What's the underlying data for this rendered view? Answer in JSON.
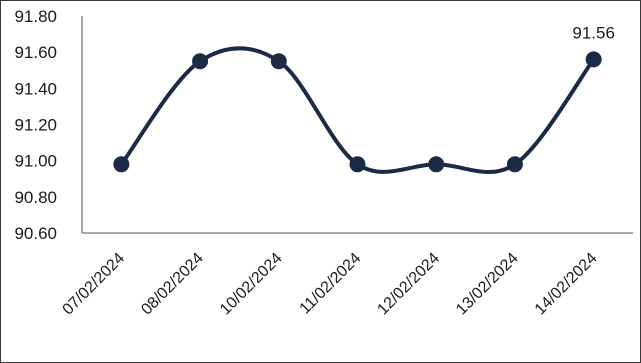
{
  "chart_data": {
    "type": "line",
    "categories": [
      "07/02/2024",
      "08/02/2024",
      "10/02/2024",
      "11/02/2024",
      "12/02/2024",
      "13/02/2024",
      "14/02/2024"
    ],
    "series": [
      {
        "values": [
          90.98,
          91.55,
          91.55,
          90.98,
          90.98,
          90.98,
          91.56
        ]
      }
    ],
    "ylim": [
      90.6,
      91.8
    ],
    "yticks": [
      "90.60",
      "90.80",
      "91.00",
      "91.20",
      "91.40",
      "91.60",
      "91.80"
    ],
    "data_labels": [
      {
        "index": 6,
        "text": "91.56"
      }
    ],
    "smooth": true,
    "grid": false,
    "colors": {
      "line": "#1c2b45",
      "marker": "#1c2b45",
      "axis": "#8c8c8c"
    }
  }
}
